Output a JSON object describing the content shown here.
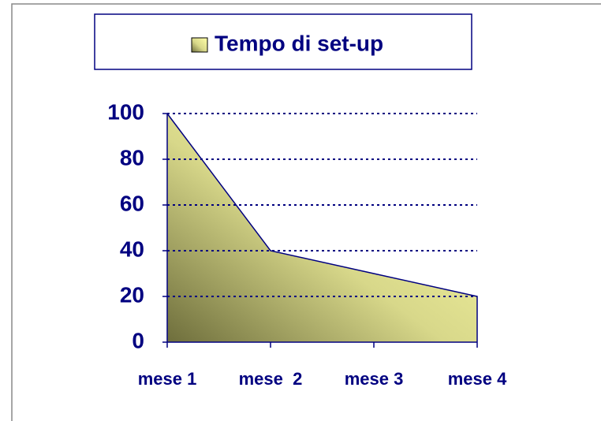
{
  "chart_data": {
    "type": "area",
    "categories": [
      "mese 1",
      "mese  2",
      "mese 3",
      "mese 4"
    ],
    "series": [
      {
        "name": "Tempo di set-up",
        "color": "#ffff99",
        "line_color": "#000080",
        "values": [
          100,
          40,
          30,
          20
        ]
      }
    ],
    "ylim": [
      0,
      100
    ],
    "yticks": [
      0,
      20,
      40,
      60,
      80,
      100
    ],
    "grid": true,
    "legend": "top"
  }
}
